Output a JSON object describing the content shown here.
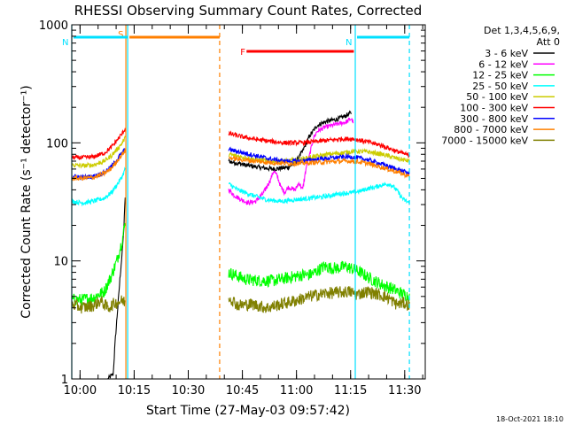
{
  "chart_data": {
    "type": "line",
    "title": "RHESSI Observing Summary Count Rates, Corrected",
    "xlabel": "Start Time (27-May-03 09:57:42)",
    "ylabel": "Corrected Count Rate (s⁻¹ detector⁻¹)",
    "yscale": "log",
    "ylim": [
      1,
      1000
    ],
    "xlim_minutes": [
      0,
      98
    ],
    "x_tick_minutes": [
      2.3,
      17.3,
      32.3,
      47.3,
      62.3,
      77.3,
      92.3
    ],
    "x_tick_labels": [
      "10:00",
      "10:15",
      "10:30",
      "10:45",
      "11:00",
      "11:15",
      "11:30"
    ],
    "y_tick_values": [
      1,
      10,
      100,
      1000
    ],
    "y_tick_labels": [
      "1",
      "10",
      "100",
      "1000"
    ],
    "detector_info": [
      "Det 1,3,4,5,6,9,",
      "Att 0"
    ],
    "footer_date": "18-Oct-2021 18:10",
    "data_gap_minutes": [
      40.5,
      43.5
    ],
    "flags": [
      {
        "label": "S",
        "color": "#ff7f00",
        "start": 15.5,
        "end": 41.0
      },
      {
        "label": "N",
        "color": "#00e0ff",
        "start": 0.0,
        "end": 15.5
      },
      {
        "label": "N",
        "color": "#00e0ff",
        "start": 78.6,
        "end": 93.6
      },
      {
        "label": "F",
        "color": "#ff0000",
        "start": 46.0,
        "end": 78.2
      }
    ],
    "markers": [
      {
        "color": "#00e0ff",
        "style": "solid",
        "minute": 0.0
      },
      {
        "color": "#ff7f00",
        "style": "solid",
        "minute": 15.0
      },
      {
        "color": "#00e0ff",
        "style": "solid",
        "minute": 15.5
      },
      {
        "color": "#ff7f00",
        "style": "dashed",
        "minute": 41.0
      },
      {
        "color": "#00e0ff",
        "style": "solid",
        "minute": 78.6
      },
      {
        "color": "#00e0ff",
        "style": "dashed",
        "minute": 93.6
      }
    ],
    "series": [
      {
        "name": "3 - 6 keV",
        "color": "#000000",
        "points": [
          [
            10,
            1
          ],
          [
            11.5,
            1.1
          ],
          [
            12,
            2
          ],
          [
            12.5,
            3.2
          ],
          [
            13,
            5
          ],
          [
            13.5,
            8
          ],
          [
            14,
            12
          ],
          [
            14.5,
            20
          ],
          [
            14.8,
            35
          ],
          [
            43.5,
            70
          ],
          [
            48,
            65
          ],
          [
            52,
            62
          ],
          [
            56,
            60
          ],
          [
            60,
            62
          ],
          [
            62,
            68
          ],
          [
            64,
            85
          ],
          [
            66,
            115
          ],
          [
            68,
            140
          ],
          [
            70,
            150
          ],
          [
            72,
            155
          ],
          [
            74,
            160
          ],
          [
            76,
            170
          ],
          [
            77.5,
            180
          ]
        ]
      },
      {
        "name": "6 - 12 keV",
        "color": "#ff00ff",
        "points": [
          [
            43.5,
            40
          ],
          [
            45,
            36
          ],
          [
            47,
            33
          ],
          [
            49,
            31
          ],
          [
            51,
            32
          ],
          [
            53,
            37
          ],
          [
            55,
            48
          ],
          [
            56,
            58
          ],
          [
            57,
            52
          ],
          [
            58,
            42
          ],
          [
            59,
            38
          ],
          [
            60,
            42
          ],
          [
            62,
            40
          ],
          [
            63,
            46
          ],
          [
            64,
            40
          ],
          [
            65,
            62
          ],
          [
            66,
            80
          ],
          [
            67,
            110
          ],
          [
            68,
            125
          ],
          [
            70,
            135
          ],
          [
            72,
            140
          ],
          [
            74,
            145
          ],
          [
            76,
            150
          ],
          [
            77.5,
            160
          ],
          [
            78,
            150
          ]
        ]
      },
      {
        "name": "12 - 25 keV",
        "color": "#00ff00",
        "points": [
          [
            0,
            4.7
          ],
          [
            3,
            4.7
          ],
          [
            6,
            4.9
          ],
          [
            9,
            5.5
          ],
          [
            11,
            7.5
          ],
          [
            12.5,
            10
          ],
          [
            14,
            15
          ],
          [
            14.8,
            21
          ],
          [
            43.5,
            8
          ],
          [
            48,
            7
          ],
          [
            52,
            6.8
          ],
          [
            56,
            6.8
          ],
          [
            60,
            7.2
          ],
          [
            64,
            7.6
          ],
          [
            66,
            7.6
          ],
          [
            68,
            8.2
          ],
          [
            70,
            9.0
          ],
          [
            72,
            8.7
          ],
          [
            74,
            8.7
          ],
          [
            76,
            9.0
          ],
          [
            78,
            8.5
          ],
          [
            80,
            8.0
          ],
          [
            83,
            7.0
          ],
          [
            86,
            6.3
          ],
          [
            89,
            5.8
          ],
          [
            92,
            5.2
          ],
          [
            93.6,
            5.0
          ]
        ]
      },
      {
        "name": "25 - 50 keV",
        "color": "#00ffff",
        "points": [
          [
            0,
            32
          ],
          [
            3,
            31
          ],
          [
            6,
            32
          ],
          [
            9,
            34
          ],
          [
            11,
            38
          ],
          [
            12.5,
            44
          ],
          [
            14,
            52
          ],
          [
            14.8,
            60
          ],
          [
            43.5,
            45
          ],
          [
            46,
            40
          ],
          [
            50,
            36
          ],
          [
            54,
            33
          ],
          [
            58,
            32
          ],
          [
            62,
            33
          ],
          [
            66,
            34
          ],
          [
            70,
            35
          ],
          [
            74,
            37
          ],
          [
            78,
            38
          ],
          [
            80,
            39
          ],
          [
            82,
            41
          ],
          [
            84,
            42
          ],
          [
            86,
            44
          ],
          [
            88,
            45
          ],
          [
            89,
            43
          ],
          [
            90,
            40
          ],
          [
            91,
            36
          ],
          [
            92,
            33
          ],
          [
            93.6,
            31
          ]
        ]
      },
      {
        "name": "50 - 100 keV",
        "color": "#cccc00",
        "points": [
          [
            0,
            65
          ],
          [
            3,
            64
          ],
          [
            6,
            65
          ],
          [
            9,
            70
          ],
          [
            11,
            78
          ],
          [
            12.5,
            88
          ],
          [
            14,
            100
          ],
          [
            14.8,
            110
          ],
          [
            43.5,
            80
          ],
          [
            47,
            76
          ],
          [
            51,
            72
          ],
          [
            55,
            70
          ],
          [
            59,
            70
          ],
          [
            63,
            72
          ],
          [
            67,
            76
          ],
          [
            71,
            80
          ],
          [
            75,
            82
          ],
          [
            78,
            85
          ],
          [
            82,
            84
          ],
          [
            86,
            80
          ],
          [
            90,
            74
          ],
          [
            93.6,
            70
          ]
        ]
      },
      {
        "name": "100 - 300 keV",
        "color": "#ff0000",
        "points": [
          [
            0,
            75
          ],
          [
            3,
            75
          ],
          [
            6,
            76
          ],
          [
            9,
            82
          ],
          [
            11,
            92
          ],
          [
            12.5,
            105
          ],
          [
            14,
            120
          ],
          [
            14.8,
            132
          ],
          [
            43.5,
            120
          ],
          [
            47,
            113
          ],
          [
            51,
            107
          ],
          [
            55,
            103
          ],
          [
            59,
            100
          ],
          [
            63,
            100
          ],
          [
            67,
            102
          ],
          [
            71,
            105
          ],
          [
            75,
            108
          ],
          [
            78,
            108
          ],
          [
            82,
            102
          ],
          [
            86,
            95
          ],
          [
            90,
            85
          ],
          [
            93.6,
            78
          ]
        ]
      },
      {
        "name": "300 - 800 keV",
        "color": "#0000ff",
        "points": [
          [
            0,
            52
          ],
          [
            3,
            51
          ],
          [
            6,
            52
          ],
          [
            9,
            56
          ],
          [
            11,
            63
          ],
          [
            12.5,
            72
          ],
          [
            14,
            82
          ],
          [
            14.8,
            88
          ],
          [
            43.5,
            88
          ],
          [
            47,
            83
          ],
          [
            51,
            78
          ],
          [
            55,
            73
          ],
          [
            59,
            70
          ],
          [
            63,
            70
          ],
          [
            67,
            72
          ],
          [
            71,
            74
          ],
          [
            75,
            76
          ],
          [
            78,
            76
          ],
          [
            82,
            72
          ],
          [
            86,
            66
          ],
          [
            90,
            60
          ],
          [
            93.6,
            55
          ]
        ]
      },
      {
        "name": "800 - 7000 keV",
        "color": "#ff8000",
        "points": [
          [
            0,
            50
          ],
          [
            3,
            50
          ],
          [
            6,
            51
          ],
          [
            9,
            55
          ],
          [
            11,
            61
          ],
          [
            12.5,
            70
          ],
          [
            14,
            80
          ],
          [
            14.8,
            86
          ],
          [
            43.5,
            75
          ],
          [
            47,
            72
          ],
          [
            51,
            70
          ],
          [
            55,
            68
          ],
          [
            59,
            67
          ],
          [
            63,
            67
          ],
          [
            67,
            68
          ],
          [
            71,
            69
          ],
          [
            75,
            70
          ],
          [
            78,
            70
          ],
          [
            82,
            67
          ],
          [
            86,
            62
          ],
          [
            90,
            57
          ],
          [
            93.6,
            52
          ]
        ]
      },
      {
        "name": "7000 - 15000 keV",
        "color": "#808000",
        "points": [
          [
            0,
            4.3
          ],
          [
            3,
            4.0
          ],
          [
            6,
            4.2
          ],
          [
            8,
            4.6
          ],
          [
            10,
            4.0
          ],
          [
            12,
            4.4
          ],
          [
            14,
            4.6
          ],
          [
            14.8,
            4.5
          ],
          [
            43.5,
            5.0
          ],
          [
            46,
            4.2
          ],
          [
            50,
            4.3
          ],
          [
            54,
            4.0
          ],
          [
            58,
            4.3
          ],
          [
            62,
            4.6
          ],
          [
            66,
            5.0
          ],
          [
            70,
            5.3
          ],
          [
            74,
            5.4
          ],
          [
            77,
            5.5
          ],
          [
            79,
            5.2
          ],
          [
            82,
            5.5
          ],
          [
            86,
            5.1
          ],
          [
            88,
            4.8
          ],
          [
            90,
            4.3
          ],
          [
            92,
            4.4
          ],
          [
            93.6,
            4.2
          ]
        ]
      }
    ]
  }
}
